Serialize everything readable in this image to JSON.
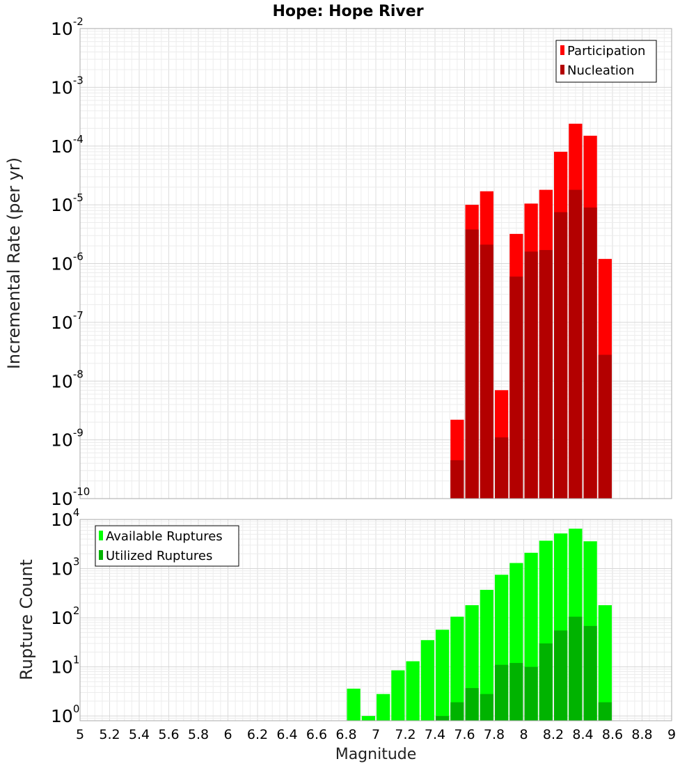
{
  "chart_data": {
    "title": "Hope: Hope River",
    "xlabel": "Magnitude",
    "x_ticks": [
      "5",
      "5.2",
      "5.4",
      "5.6",
      "5.8",
      "6",
      "6.2",
      "6.4",
      "6.6",
      "6.8",
      "7",
      "7.2",
      "7.4",
      "7.6",
      "7.8",
      "8",
      "8.2",
      "8.4",
      "8.6",
      "8.8",
      "9"
    ],
    "xlim": [
      5,
      9
    ],
    "bin_width": 0.1,
    "grid": true,
    "panels": [
      {
        "type": "bar",
        "ylabel": "Incremental Rate (per yr)",
        "yscale": "log",
        "ylim": [
          1e-10,
          0.01
        ],
        "y_tick_exponents": [
          -10,
          -9,
          -8,
          -7,
          -6,
          -5,
          -4,
          -3,
          -2
        ],
        "legend_position": "top-right",
        "series": [
          {
            "name": "Participation",
            "color": "#ff0000",
            "x": [
              7.55,
              7.65,
              7.75,
              7.85,
              7.95,
              8.05,
              8.15,
              8.25,
              8.35,
              8.45,
              8.55
            ],
            "values": [
              2.2e-09,
              1e-05,
              1.7e-05,
              7e-09,
              3.2e-06,
              1.05e-05,
              1.8e-05,
              8e-05,
              0.00024,
              0.00015,
              1.2e-06
            ]
          },
          {
            "name": "Nucleation",
            "color": "#b30000",
            "x": [
              7.55,
              7.65,
              7.75,
              7.85,
              7.95,
              8.05,
              8.15,
              8.25,
              8.35,
              8.45,
              8.55
            ],
            "values": [
              4.5e-10,
              3.8e-06,
              2.1e-06,
              1.1e-09,
              6e-07,
              1.6e-06,
              1.7e-06,
              7.5e-06,
              1.8e-05,
              9e-06,
              2.8e-08
            ]
          }
        ]
      },
      {
        "type": "bar",
        "ylabel": "Rupture Count",
        "yscale": "log",
        "ylim": [
          0.8,
          10000
        ],
        "y_tick_exponents": [
          0,
          1,
          2,
          3,
          4
        ],
        "legend_position": "top-left",
        "series": [
          {
            "name": "Available Ruptures",
            "color": "#00ff00",
            "x": [
              6.85,
              6.95,
              7.05,
              7.15,
              7.25,
              7.35,
              7.45,
              7.55,
              7.65,
              7.75,
              7.85,
              7.95,
              8.05,
              8.15,
              8.25,
              8.35,
              8.45,
              8.55
            ],
            "values": [
              3.6,
              1.0,
              2.8,
              8.5,
              13,
              35,
              57,
              105,
              180,
              370,
              750,
              1300,
              2100,
              3700,
              5200,
              6500,
              3600,
              180
            ]
          },
          {
            "name": "Utilized Ruptures",
            "color": "#00b300",
            "x": [
              7.45,
              7.55,
              7.65,
              7.75,
              7.85,
              7.95,
              8.05,
              8.15,
              8.25,
              8.35,
              8.45,
              8.55
            ],
            "values": [
              1.0,
              1.9,
              3.7,
              2.8,
              11,
              12,
              10,
              30,
              55,
              105,
              68,
              1.9
            ]
          }
        ]
      }
    ]
  }
}
